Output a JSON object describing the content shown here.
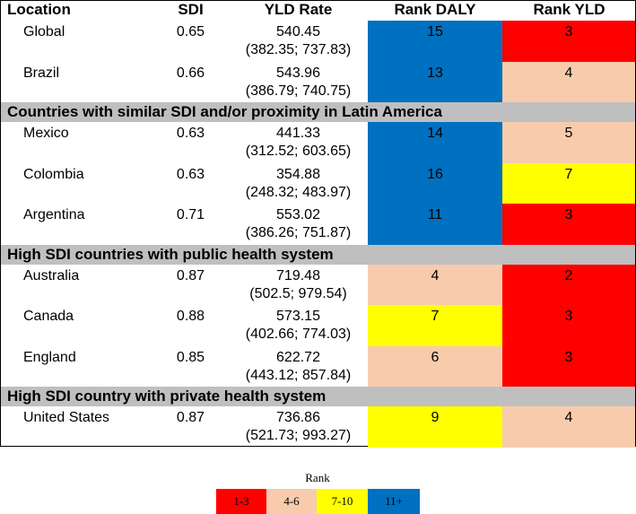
{
  "table": {
    "header": [
      "Location",
      "SDI",
      "YLD Rate",
      "Rank DALY",
      "Rank YLD"
    ],
    "groups": [
      {
        "rows": [
          {
            "location": "Global",
            "sdi": 0.65,
            "yld": 540.45,
            "ci": "(382.35; 737.83)",
            "rank_daly": 15,
            "daly_color": "#0070c0",
            "rank_yld": 3,
            "yld_color": "#ff0000"
          },
          {
            "location": "Brazil",
            "sdi": 0.66,
            "yld": 543.96,
            "ci": "(386.79; 740.75)",
            "rank_daly": 13,
            "daly_color": "#0070c0",
            "rank_yld": 4,
            "yld_color": "#f8cbad"
          }
        ]
      },
      {
        "title": "Countries with similar SDI and/or proximity in Latin America",
        "rows": [
          {
            "location": "Mexico",
            "sdi": 0.63,
            "yld": 441.33,
            "ci": "(312.52; 603.65)",
            "rank_daly": 14,
            "daly_color": "#0070c0",
            "rank_yld": 5,
            "yld_color": "#f8cbad"
          },
          {
            "location": "Colombia",
            "sdi": 0.63,
            "yld": 354.88,
            "ci": "(248.32; 483.97)",
            "rank_daly": 16,
            "daly_color": "#0070c0",
            "rank_yld": 7,
            "yld_color": "#ffff00"
          },
          {
            "location": "Argentina",
            "sdi": 0.71,
            "yld": 553.02,
            "ci": "(386.26; 751.87)",
            "rank_daly": 11,
            "daly_color": "#0070c0",
            "rank_yld": 3,
            "yld_color": "#ff0000"
          }
        ]
      },
      {
        "title": "High SDI countries with public health system",
        "rows": [
          {
            "location": "Australia",
            "sdi": 0.87,
            "yld": 719.48,
            "ci": "(502.5; 979.54)",
            "rank_daly": 4,
            "daly_color": "#f8cbad",
            "rank_yld": 2,
            "yld_color": "#ff0000"
          },
          {
            "location": "Canada",
            "sdi": 0.88,
            "yld": 573.15,
            "ci": "(402.66; 774.03)",
            "rank_daly": 7,
            "daly_color": "#ffff00",
            "rank_yld": 3,
            "yld_color": "#ff0000"
          },
          {
            "location": "England",
            "sdi": 0.85,
            "yld": 622.72,
            "ci": "(443.12; 857.84)",
            "rank_daly": 6,
            "daly_color": "#f8cbad",
            "rank_yld": 3,
            "yld_color": "#ff0000"
          }
        ]
      },
      {
        "title": "High SDI country with private health system",
        "rows": [
          {
            "location": "United States",
            "sdi": 0.87,
            "yld": 736.86,
            "ci": "(521.73; 993.27)",
            "rank_daly": 9,
            "daly_color": "#ffff00",
            "rank_yld": 4,
            "yld_color": "#f8cbad"
          }
        ]
      }
    ]
  },
  "legend": {
    "title": "Rank",
    "items": [
      {
        "label": "1-3",
        "color": "#ff0000"
      },
      {
        "label": "4-6",
        "color": "#f8cbad"
      },
      {
        "label": "7-10",
        "color": "#ffff00"
      },
      {
        "label": "11+",
        "color": "#0070c0"
      }
    ]
  }
}
